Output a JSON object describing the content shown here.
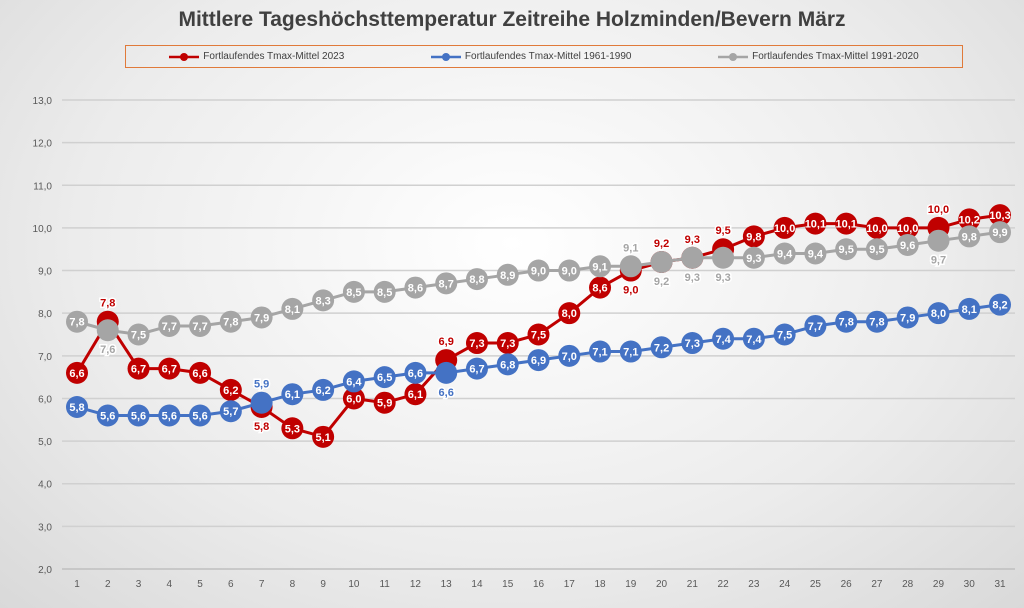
{
  "chart_data": {
    "type": "line",
    "title": "Mittlere Tageshöchsttemperatur Zeitreihe Holzminden/Bevern März",
    "xlabel": "",
    "ylabel": "",
    "x": [
      1,
      2,
      3,
      4,
      5,
      6,
      7,
      8,
      9,
      10,
      11,
      12,
      13,
      14,
      15,
      16,
      17,
      18,
      19,
      20,
      21,
      22,
      23,
      24,
      25,
      26,
      27,
      28,
      29,
      30,
      31
    ],
    "ylim": [
      2.0,
      13.0
    ],
    "yticks": [
      "2,0",
      "3,0",
      "4,0",
      "5,0",
      "6,0",
      "7,0",
      "8,0",
      "9,0",
      "10,0",
      "11,0",
      "12,0",
      "13,0"
    ],
    "grid": true,
    "legend_position": "top",
    "series": [
      {
        "name": "Fortlaufendes Tmax-Mittel 2023",
        "color": "#c00000",
        "values": [
          6.6,
          7.8,
          6.7,
          6.7,
          6.6,
          6.2,
          5.8,
          5.3,
          5.1,
          6.0,
          5.9,
          6.1,
          6.9,
          7.3,
          7.3,
          7.5,
          8.0,
          8.6,
          9.0,
          9.2,
          9.3,
          9.5,
          9.8,
          10.0,
          10.1,
          10.1,
          10.0,
          10.0,
          10.0,
          10.2,
          10.3
        ]
      },
      {
        "name": "Fortlaufendes Tmax-Mittel 1961-1990",
        "color": "#4472c4",
        "values": [
          5.8,
          5.6,
          5.6,
          5.6,
          5.6,
          5.7,
          5.9,
          6.1,
          6.2,
          6.4,
          6.5,
          6.6,
          6.6,
          6.7,
          6.8,
          6.9,
          7.0,
          7.1,
          7.1,
          7.2,
          7.3,
          7.4,
          7.4,
          7.5,
          7.7,
          7.8,
          7.8,
          7.9,
          8.0,
          8.1,
          8.2
        ]
      },
      {
        "name": "Fortlaufendes Tmax-Mittel 1991-2020",
        "color": "#a5a5a5",
        "values": [
          7.8,
          7.6,
          7.5,
          7.7,
          7.7,
          7.8,
          7.9,
          8.1,
          8.3,
          8.5,
          8.5,
          8.6,
          8.7,
          8.8,
          8.9,
          9.0,
          9.0,
          9.1,
          9.1,
          9.2,
          9.3,
          9.3,
          9.3,
          9.4,
          9.4,
          9.5,
          9.5,
          9.6,
          9.7,
          9.8,
          9.9
        ]
      }
    ]
  }
}
